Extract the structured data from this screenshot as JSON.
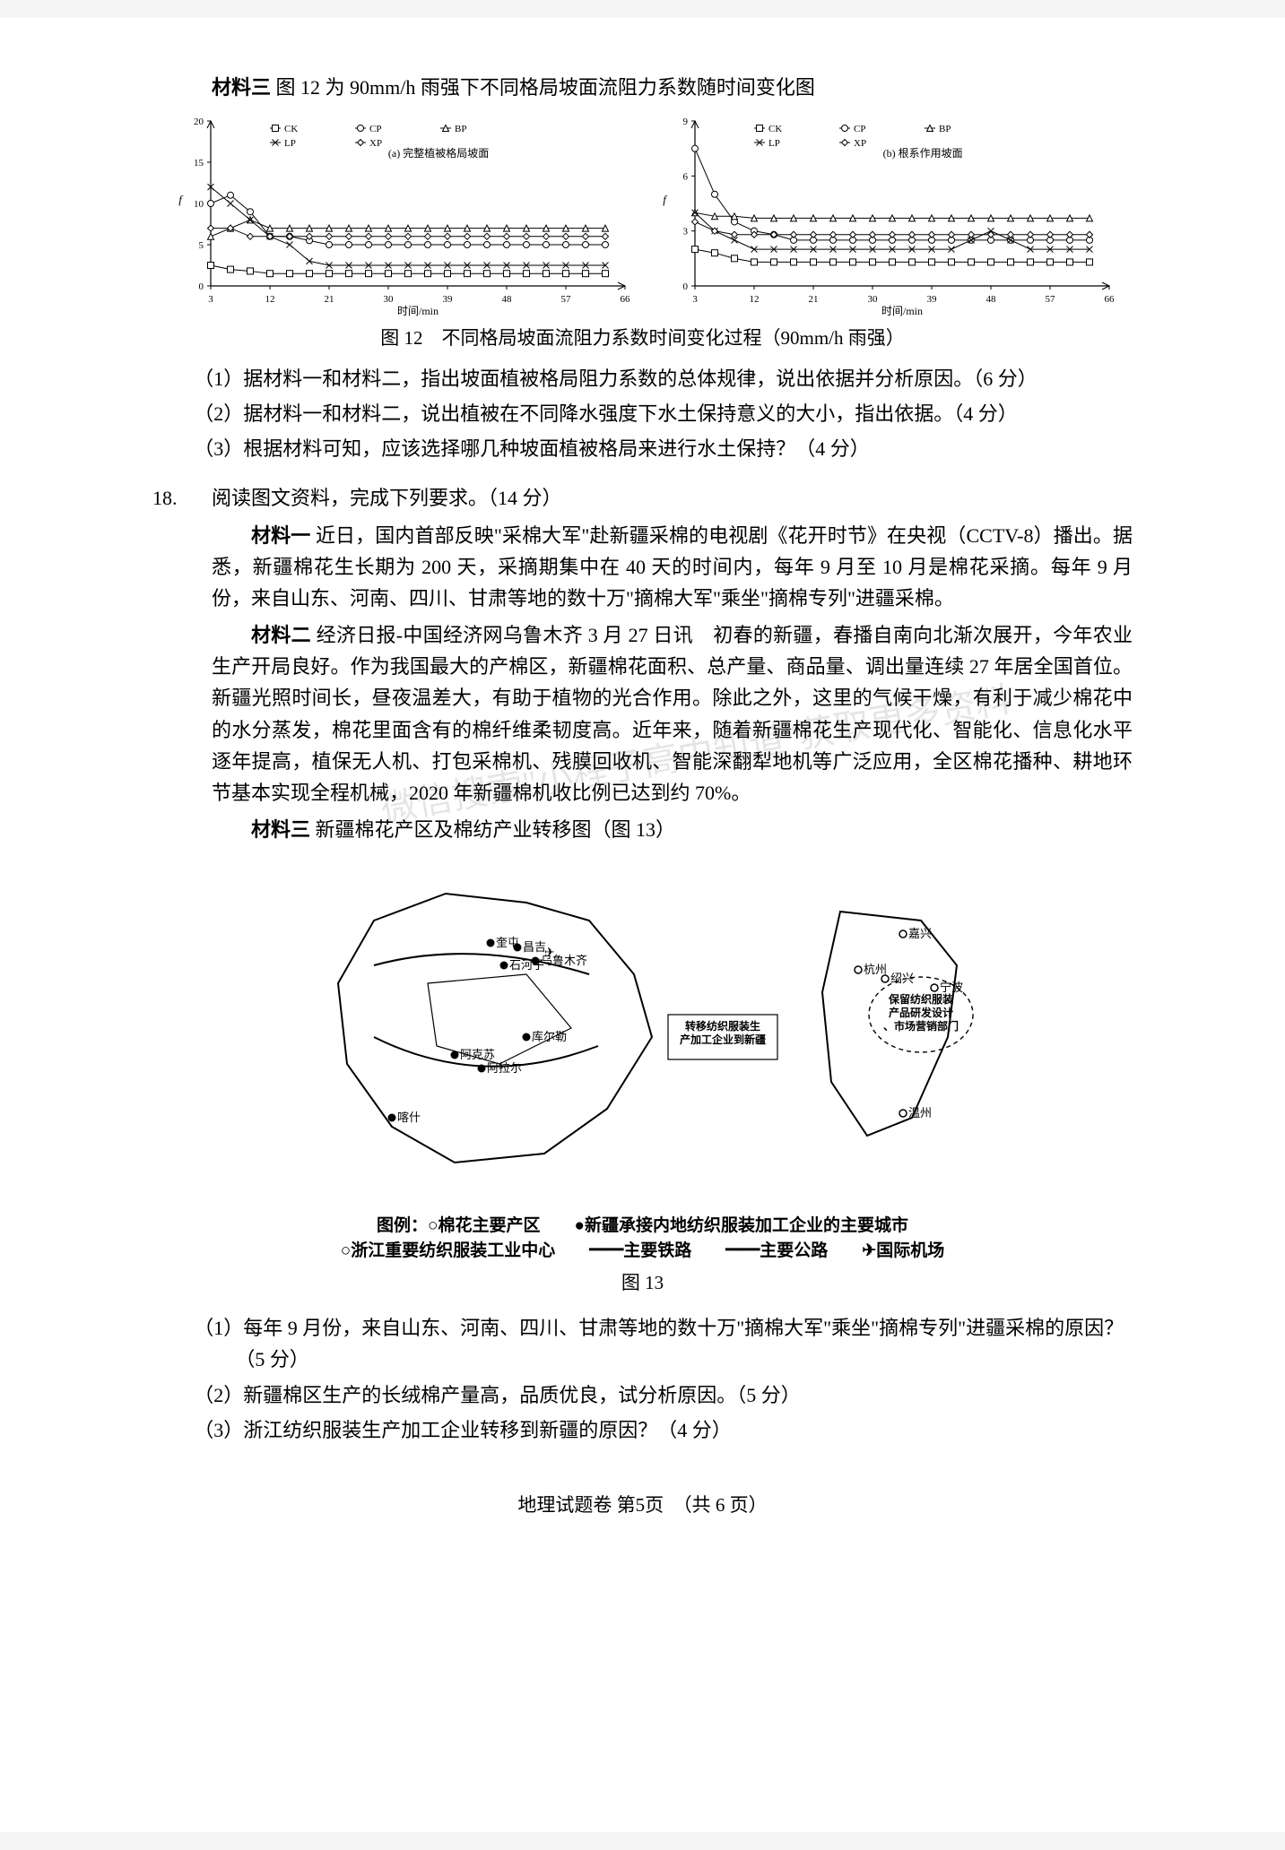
{
  "material3_title": "材料三",
  "material3_caption": "图 12 为 90mm/h 雨强下不同格局坡面流阻力系数随时间变化图",
  "chart_a": {
    "type": "line",
    "title": "(a) 完整植被格局坡面",
    "xlabel": "时间/min",
    "ylabel": "f",
    "xlim": [
      3,
      66
    ],
    "ylim": [
      0,
      20
    ],
    "xticks": [
      3,
      12,
      21,
      30,
      39,
      48,
      57,
      66
    ],
    "yticks": [
      0,
      5,
      10,
      15,
      20
    ],
    "label_fontsize": 11,
    "background_color": "#ffffff",
    "axis_color": "#000000",
    "series": [
      {
        "name": "CK",
        "marker": "square",
        "color": "#000000",
        "x": [
          3,
          6,
          9,
          12,
          15,
          18,
          21,
          24,
          27,
          30,
          33,
          36,
          39,
          42,
          45,
          48,
          51,
          54,
          57,
          60,
          63
        ],
        "y": [
          2.5,
          2,
          1.8,
          1.5,
          1.5,
          1.5,
          1.5,
          1.5,
          1.5,
          1.5,
          1.5,
          1.5,
          1.5,
          1.5,
          1.5,
          1.5,
          1.5,
          1.5,
          1.5,
          1.5,
          1.5
        ]
      },
      {
        "name": "CP",
        "marker": "circle",
        "color": "#000000",
        "x": [
          3,
          6,
          9,
          12,
          15,
          18,
          21,
          24,
          27,
          30,
          33,
          36,
          39,
          42,
          45,
          48,
          51,
          54,
          57,
          60,
          63
        ],
        "y": [
          10,
          11,
          9,
          6,
          6,
          5.5,
          5,
          5,
          5,
          5,
          5,
          5,
          5,
          5,
          5,
          5,
          5,
          5,
          5,
          5,
          5
        ]
      },
      {
        "name": "BP",
        "marker": "triangle",
        "color": "#000000",
        "x": [
          3,
          6,
          9,
          12,
          15,
          18,
          21,
          24,
          27,
          30,
          33,
          36,
          39,
          42,
          45,
          48,
          51,
          54,
          57,
          60,
          63
        ],
        "y": [
          6,
          7,
          8,
          7,
          7,
          7,
          7,
          7,
          7,
          7,
          7,
          7,
          7,
          7,
          7,
          7,
          7,
          7,
          7,
          7,
          7
        ]
      },
      {
        "name": "LP",
        "marker": "x",
        "color": "#000000",
        "x": [
          3,
          6,
          9,
          12,
          15,
          18,
          21,
          24,
          27,
          30,
          33,
          36,
          39,
          42,
          45,
          48,
          51,
          54,
          57,
          60,
          63
        ],
        "y": [
          12,
          10,
          8,
          6,
          5,
          3,
          2.5,
          2.5,
          2.5,
          2.5,
          2.5,
          2.5,
          2.5,
          2.5,
          2.5,
          2.5,
          2.5,
          2.5,
          2.5,
          2.5,
          2.5
        ]
      },
      {
        "name": "XP",
        "marker": "diamond",
        "color": "#000000",
        "x": [
          3,
          6,
          9,
          12,
          15,
          18,
          21,
          24,
          27,
          30,
          33,
          36,
          39,
          42,
          45,
          48,
          51,
          54,
          57,
          60,
          63
        ],
        "y": [
          7,
          7,
          6,
          6,
          6,
          6,
          6,
          6,
          6,
          6,
          6,
          6,
          6,
          6,
          6,
          6,
          6,
          6,
          6,
          6,
          6
        ]
      }
    ],
    "legend_labels": [
      "CK",
      "CP",
      "BP",
      "LP",
      "XP"
    ]
  },
  "chart_b": {
    "type": "line",
    "title": "(b) 根系作用坡面",
    "xlabel": "时间/min",
    "ylabel": "f",
    "xlim": [
      3,
      66
    ],
    "ylim": [
      0,
      9
    ],
    "xticks": [
      3,
      12,
      21,
      30,
      39,
      48,
      57,
      66
    ],
    "yticks": [
      0,
      3,
      6,
      9
    ],
    "label_fontsize": 11,
    "background_color": "#ffffff",
    "axis_color": "#000000",
    "series": [
      {
        "name": "CK",
        "marker": "square",
        "color": "#000000",
        "x": [
          3,
          6,
          9,
          12,
          15,
          18,
          21,
          24,
          27,
          30,
          33,
          36,
          39,
          42,
          45,
          48,
          51,
          54,
          57,
          60,
          63
        ],
        "y": [
          2,
          1.8,
          1.5,
          1.3,
          1.3,
          1.3,
          1.3,
          1.3,
          1.3,
          1.3,
          1.3,
          1.3,
          1.3,
          1.3,
          1.3,
          1.3,
          1.3,
          1.3,
          1.3,
          1.3,
          1.3
        ]
      },
      {
        "name": "CP",
        "marker": "circle",
        "color": "#000000",
        "x": [
          3,
          6,
          9,
          12,
          15,
          18,
          21,
          24,
          27,
          30,
          33,
          36,
          39,
          42,
          45,
          48,
          51,
          54,
          57,
          60,
          63
        ],
        "y": [
          7.5,
          5,
          3.5,
          3,
          2.8,
          2.5,
          2.5,
          2.5,
          2.5,
          2.5,
          2.5,
          2.5,
          2.5,
          2.5,
          2.5,
          2.5,
          2.5,
          2.5,
          2.5,
          2.5,
          2.5
        ]
      },
      {
        "name": "BP",
        "marker": "triangle",
        "color": "#000000",
        "x": [
          3,
          6,
          9,
          12,
          15,
          18,
          21,
          24,
          27,
          30,
          33,
          36,
          39,
          42,
          45,
          48,
          51,
          54,
          57,
          60,
          63
        ],
        "y": [
          4,
          3.8,
          3.8,
          3.7,
          3.7,
          3.7,
          3.7,
          3.7,
          3.7,
          3.7,
          3.7,
          3.7,
          3.7,
          3.7,
          3.7,
          3.7,
          3.7,
          3.7,
          3.7,
          3.7,
          3.7
        ]
      },
      {
        "name": "LP",
        "marker": "x",
        "color": "#000000",
        "x": [
          3,
          6,
          9,
          12,
          15,
          18,
          21,
          24,
          27,
          30,
          33,
          36,
          39,
          42,
          45,
          48,
          51,
          54,
          57,
          60,
          63
        ],
        "y": [
          4,
          3,
          2.5,
          2,
          2,
          2,
          2,
          2,
          2,
          2,
          2,
          2,
          2,
          2,
          2.5,
          3,
          2.5,
          2,
          2,
          2,
          2
        ]
      },
      {
        "name": "XP",
        "marker": "diamond",
        "color": "#000000",
        "x": [
          3,
          6,
          9,
          12,
          15,
          18,
          21,
          24,
          27,
          30,
          33,
          36,
          39,
          42,
          45,
          48,
          51,
          54,
          57,
          60,
          63
        ],
        "y": [
          3.5,
          3,
          2.8,
          2.8,
          2.8,
          2.8,
          2.8,
          2.8,
          2.8,
          2.8,
          2.8,
          2.8,
          2.8,
          2.8,
          2.8,
          2.8,
          2.8,
          2.8,
          2.8,
          2.8,
          2.8
        ]
      }
    ],
    "legend_labels": [
      "CK",
      "CP",
      "BP",
      "LP",
      "XP"
    ]
  },
  "fig12_caption": "图 12　不同格局坡面流阻力系数时间变化过程（90mm/h 雨强）",
  "q17_1": "（1）据材料一和材料二，指出坡面植被格局阻力系数的总体规律，说出依据并分析原因。（6 分）",
  "q17_2": "（2）据材料一和材料二，说出植被在不同降水强度下水土保持意义的大小，指出依据。（4 分）",
  "q17_3": "（3）根据材料可知，应该选择哪几种坡面植被格局来进行水土保持？（4 分）",
  "q18_num": "18.",
  "q18_head": "阅读图文资料，完成下列要求。（14 分）",
  "q18_m1_label": "材料一",
  "q18_m1": "近日，国内首部反映\"采棉大军\"赴新疆采棉的电视剧《花开时节》在央视（CCTV-8）播出。据悉，新疆棉花生长期为 200 天，采摘期集中在 40 天的时间内，每年 9 月至 10 月是棉花采摘。每年 9 月份，来自山东、河南、四川、甘肃等地的数十万\"摘棉大军\"乘坐\"摘棉专列\"进疆采棉。",
  "q18_m2_label": "材料二",
  "q18_m2": "经济日报-中国经济网乌鲁木齐 3 月 27 日讯　初春的新疆，春播自南向北渐次展开，今年农业生产开局良好。作为我国最大的产棉区，新疆棉花面积、总产量、商品量、调出量连续 27 年居全国首位。新疆光照时间长，昼夜温差大，有助于植物的光合作用。除此之外，这里的气候干燥，有利于减少棉花中的水分蒸发，棉花里面含有的棉纤维柔韧度高。近年来，随着新疆棉花生产现代化、智能化、信息化水平逐年提高，植保无人机、打包采棉机、残膜回收机、智能深翻犁地机等广泛应用，全区棉花播种、耕地环节基本实现全程机械，2020 年新疆棉机收比例已达到约 70%。",
  "q18_m3_label": "材料三",
  "q18_m3": "新疆棉花产区及棉纺产业转移图（图 13）",
  "map": {
    "type": "map",
    "background_color": "#ffffff",
    "border_color": "#000000",
    "xinjiang_cities": [
      "奎屯",
      "昌吉",
      "乌鲁木齐",
      "石河子",
      "库尔勒",
      "阿克苏",
      "阿拉尔",
      "喀什"
    ],
    "zhejiang_cities": [
      "嘉兴",
      "杭州",
      "绍兴",
      "宁波",
      "温州"
    ],
    "arrow_label": "转移纺织服装生产加工企业到新疆",
    "zhejiang_label": "保留纺织服装产品研发设计、市场营销部门",
    "legend_line1": "图例：○棉花主要产区　　●新疆承接内地纺织服装加工企业的主要城市",
    "legend_line2": "○浙江重要纺织服装工业中心　　━━主要铁路　　━━主要公路　　✈国际机场"
  },
  "fig13_caption": "图 13",
  "q18_1": "（1）每年 9 月份，来自山东、河南、四川、甘肃等地的数十万\"摘棉大军\"乘坐\"摘棉专列\"进疆采棉的原因？（5 分）",
  "q18_2": "（2）新疆棉区生产的长绒棉产量高，品质优良，试分析原因。（5 分）",
  "q18_3": "（3）浙江纺织服装生产加工企业转移到新疆的原因？（4 分）",
  "footer": "地理试题卷 第5页　（共 6 页）",
  "watermark": "微信搜索\"小程子高中知道\"获取更多资料"
}
